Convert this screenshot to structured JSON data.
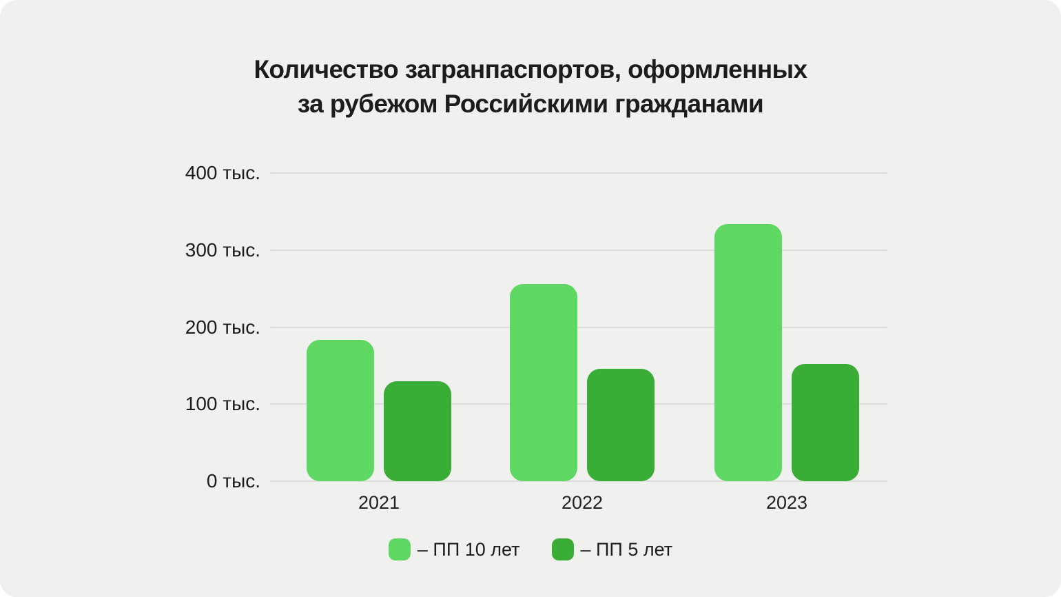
{
  "title_lines": [
    "Количество загранпаспортов, оформленных",
    "за рубежом Российскими гражданами"
  ],
  "colors": {
    "background": "#f0f0ee",
    "series_10yr": "#5ed763",
    "series_5yr": "#3aad37",
    "gridline": "#dcdcda",
    "text": "#1c1c1e"
  },
  "y_axis": {
    "tick_labels": [
      "0 тыс.",
      "100 тыс.",
      "200 тыс.",
      "300 тыс.",
      "400 тыс."
    ],
    "unit": "тыс."
  },
  "legend": {
    "items": [
      {
        "label": "– ПП 10 лет",
        "color_key": "series_10yr",
        "name": "pp10"
      },
      {
        "label": "– ПП 5 лет",
        "color_key": "series_5yr",
        "name": "pp5"
      }
    ]
  },
  "chart_data": {
    "type": "bar",
    "title": "Количество загранпаспортов, оформленных за рубежом Российскими гражданами",
    "categories": [
      "2021",
      "2022",
      "2023"
    ],
    "series": [
      {
        "name": "ПП 10 лет",
        "color": "#5ed763",
        "values": [
          183,
          256,
          334
        ]
      },
      {
        "name": "ПП 5 лет",
        "color": "#3aad37",
        "values": [
          130,
          146,
          152
        ]
      }
    ],
    "xlabel": "",
    "ylabel": "тыс.",
    "ylim": [
      0,
      400
    ],
    "ytick_step": 100,
    "grid": true,
    "legend_position": "bottom"
  }
}
